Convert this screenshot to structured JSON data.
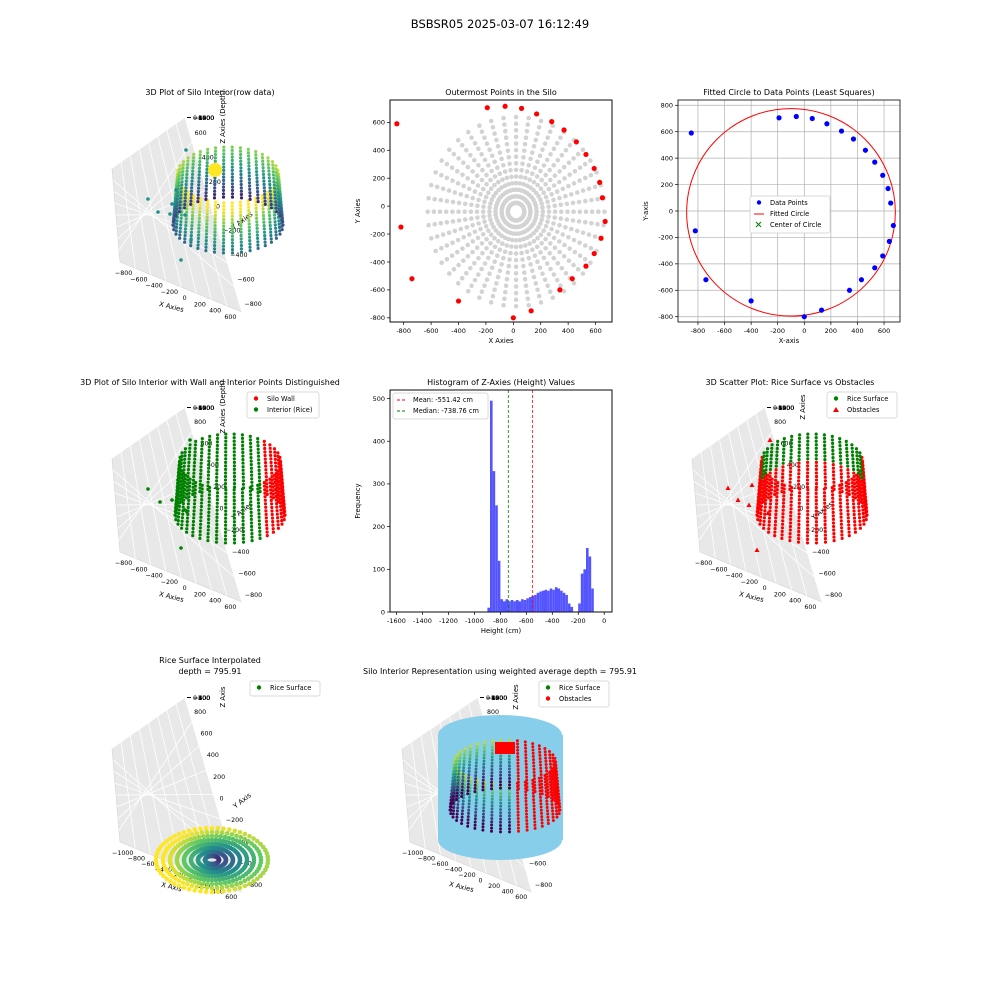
{
  "figure": {
    "title": "BSBSR05 2025-03-07 16:12:49"
  },
  "colors": {
    "wall": "#ff0000",
    "interior": "#008000",
    "grey": "#d3d3d3",
    "blue": "#0000ff",
    "hist": "#5555ff",
    "cylinder": "#87ceeb"
  },
  "chart_data": [
    {
      "id": "p1",
      "type": "scatter3d",
      "title": "3D Plot of Silo Interior(row data)",
      "xlabel": "X Axies",
      "ylabel": "Y Axies",
      "zlabel": "Z Axies (Depth)",
      "xticks": [
        "−800",
        "−600",
        "−400",
        "−200",
        "0",
        "200",
        "400",
        "600"
      ],
      "yticks": [
        "−800",
        "−600",
        "−400",
        "−200",
        "0",
        "200",
        "400",
        "600"
      ],
      "zticks": [
        "0",
        "−200",
        "−400",
        "−600",
        "−800",
        "−1000",
        "−1200",
        "−1400",
        "−1600"
      ],
      "xlim": [
        -850,
        700
      ],
      "ylim": [
        -850,
        700
      ],
      "zlim": [
        -1700,
        0
      ],
      "colormap": "viridis"
    },
    {
      "id": "p2",
      "type": "scatter",
      "title": "Outermost Points in the Silo",
      "xlabel": "X Axies",
      "ylabel": "Y Axies",
      "xlim": [
        -900,
        720
      ],
      "ylim": [
        -830,
        760
      ],
      "xticks": [
        -800,
        -600,
        -400,
        -200,
        0,
        200,
        400,
        600
      ],
      "yticks": [
        -800,
        -600,
        -400,
        -200,
        0,
        200,
        400,
        600
      ],
      "outer_points": [
        [
          -850,
          590
        ],
        [
          -820,
          -150
        ],
        [
          -740,
          -520
        ],
        [
          -400,
          -680
        ],
        [
          -190,
          705
        ],
        [
          -60,
          715
        ],
        [
          60,
          700
        ],
        [
          170,
          660
        ],
        [
          280,
          605
        ],
        [
          370,
          545
        ],
        [
          460,
          460
        ],
        [
          530,
          370
        ],
        [
          590,
          270
        ],
        [
          630,
          170
        ],
        [
          650,
          60
        ],
        [
          670,
          -110
        ],
        [
          640,
          -230
        ],
        [
          590,
          -340
        ],
        [
          530,
          -430
        ],
        [
          430,
          -520
        ],
        [
          340,
          -600
        ],
        [
          130,
          -750
        ],
        [
          0,
          -800
        ]
      ]
    },
    {
      "id": "p3",
      "type": "scatter",
      "title": "Fitted Circle to Data Points (Least Squares)",
      "xlabel": "X-axis",
      "ylabel": "Y-axis",
      "xlim": [
        -950,
        720
      ],
      "ylim": [
        -840,
        840
      ],
      "xticks": [
        -800,
        -600,
        -400,
        -200,
        0,
        200,
        400,
        600
      ],
      "yticks": [
        -800,
        -600,
        -400,
        -200,
        0,
        200,
        400,
        600,
        800
      ],
      "legend": [
        "Data Points",
        "Fitted Circle",
        "Center of Circle"
      ],
      "circle": {
        "cx": -100,
        "cy": -10,
        "r": 785
      },
      "points": [
        [
          -850,
          590
        ],
        [
          -820,
          -150
        ],
        [
          -740,
          -520
        ],
        [
          -400,
          -680
        ],
        [
          -190,
          705
        ],
        [
          -60,
          715
        ],
        [
          60,
          700
        ],
        [
          170,
          660
        ],
        [
          280,
          605
        ],
        [
          370,
          545
        ],
        [
          460,
          460
        ],
        [
          530,
          370
        ],
        [
          590,
          270
        ],
        [
          630,
          170
        ],
        [
          650,
          60
        ],
        [
          670,
          -110
        ],
        [
          640,
          -230
        ],
        [
          590,
          -340
        ],
        [
          530,
          -430
        ],
        [
          430,
          -520
        ],
        [
          340,
          -600
        ],
        [
          130,
          -750
        ],
        [
          0,
          -800
        ]
      ]
    },
    {
      "id": "p4",
      "type": "scatter3d",
      "title": "3D Plot of Silo Interior with Wall and Interior Points Distinguished",
      "xlabel": "X Axies",
      "ylabel": "Y Axies",
      "zlabel": "Z Axies (Depth)",
      "xticks": [
        "−800",
        "−600",
        "−400",
        "−200",
        "0",
        "200",
        "400",
        "600"
      ],
      "yticks": [
        "−800",
        "−600",
        "−400",
        "−200",
        "0",
        "200",
        "400",
        "600",
        "800"
      ],
      "zticks": [
        "0",
        "−200",
        "−400",
        "−600",
        "−800",
        "−1000",
        "−1200",
        "−1400",
        "−1600"
      ],
      "legend": [
        "Silo Wall",
        "Interior (Rice)"
      ]
    },
    {
      "id": "p5",
      "type": "bar",
      "title": "Histogram of Z-Axies (Height) Values",
      "xlabel": "Height (cm)",
      "ylabel": "Frequency",
      "xlim": [
        -1650,
        60
      ],
      "ylim": [
        0,
        520
      ],
      "xticks": [
        -1600,
        -1400,
        -1200,
        -1000,
        -800,
        -600,
        -400,
        -200,
        0
      ],
      "yticks": [
        0,
        100,
        200,
        300,
        400,
        500
      ],
      "bin_width": 20,
      "bins": [
        [
          -900,
          10
        ],
        [
          -880,
          495
        ],
        [
          -860,
          330
        ],
        [
          -840,
          250
        ],
        [
          -820,
          120
        ],
        [
          -800,
          30
        ],
        [
          -780,
          25
        ],
        [
          -760,
          30
        ],
        [
          -740,
          25
        ],
        [
          -720,
          28
        ],
        [
          -700,
          25
        ],
        [
          -680,
          28
        ],
        [
          -660,
          25
        ],
        [
          -640,
          30
        ],
        [
          -620,
          28
        ],
        [
          -600,
          32
        ],
        [
          -580,
          35
        ],
        [
          -560,
          38
        ],
        [
          -540,
          40
        ],
        [
          -520,
          45
        ],
        [
          -500,
          48
        ],
        [
          -480,
          50
        ],
        [
          -460,
          52
        ],
        [
          -440,
          50
        ],
        [
          -420,
          55
        ],
        [
          -400,
          52
        ],
        [
          -380,
          58
        ],
        [
          -360,
          55
        ],
        [
          -340,
          50
        ],
        [
          -320,
          45
        ],
        [
          -300,
          40
        ],
        [
          -280,
          20
        ],
        [
          -260,
          12
        ],
        [
          -240,
          0
        ],
        [
          -220,
          0
        ],
        [
          -200,
          20
        ],
        [
          -180,
          90
        ],
        [
          -160,
          100
        ],
        [
          -140,
          150
        ],
        [
          -120,
          130
        ],
        [
          -100,
          55
        ]
      ],
      "mean_line": -551.42,
      "median_line": -738.76,
      "legend": [
        "Mean: -551.42 cm",
        "Median: -738.76 cm"
      ]
    },
    {
      "id": "p6",
      "type": "scatter3d",
      "title": "3D Scatter Plot: Rice Surface vs Obstacles",
      "xlabel": "X Axies",
      "ylabel": "Y Axies",
      "zlabel": "Z Axies",
      "xticks": [
        "−800",
        "−600",
        "−400",
        "−200",
        "0",
        "200",
        "400",
        "600"
      ],
      "yticks": [
        "−800",
        "−600",
        "−400",
        "−200",
        "0",
        "200",
        "400",
        "600",
        "800"
      ],
      "zticks": [
        "0",
        "−200",
        "−400",
        "−600",
        "−800",
        "−1000",
        "−1200",
        "−1400",
        "−1600"
      ],
      "legend": [
        "Rice Surface",
        "Obstacles"
      ]
    },
    {
      "id": "p7",
      "type": "surface3d",
      "title": "Rice Surface Interpolated",
      "subtitle": "depth = 795.91",
      "xlabel": "X Axis",
      "ylabel": "Y Axis",
      "zlabel": "Z Axis",
      "xticks": [
        "−1000",
        "−800",
        "−600",
        "−400",
        "−200",
        "0",
        "200",
        "400",
        "600"
      ],
      "yticks": [
        "−800",
        "−600",
        "−400",
        "−200",
        "0",
        "200",
        "400",
        "600",
        "800"
      ],
      "zticks": [
        "0",
        "−100",
        "−200",
        "−300",
        "−400",
        "−500",
        "−600",
        "−700"
      ],
      "legend": [
        "Rice Surface"
      ]
    },
    {
      "id": "p8",
      "type": "scatter3d",
      "title": "Silo Interior Representation using weighted average depth = 795.91",
      "xlabel": "X Axies",
      "ylabel": "Y Axis",
      "zlabel": "Z Axies",
      "xticks": [
        "−1000",
        "−800",
        "−600",
        "−400",
        "−200",
        "0",
        "200",
        "400",
        "600"
      ],
      "yticks": [
        "−800",
        "−600",
        "−400",
        "−200",
        "0",
        "200",
        "400",
        "600",
        "800"
      ],
      "zticks": [
        "0",
        "−200",
        "−400",
        "−600",
        "−800",
        "−1000",
        "−1200",
        "−1400",
        "−1600"
      ],
      "legend": [
        "Rice Surface",
        "Obstacles"
      ]
    }
  ]
}
